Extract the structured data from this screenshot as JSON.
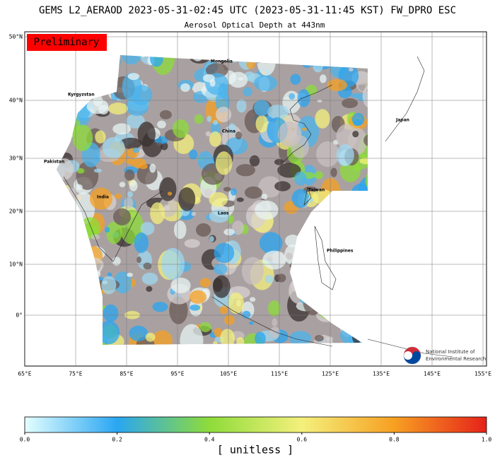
{
  "header": {
    "title": "GEMS L2_AERAOD 2023-05-31-02:45 UTC (2023-05-31-11:45 KST)  FW_DPRO ESC",
    "subtitle": "Aerosol Optical Depth at 443nm"
  },
  "badge": "Preliminary",
  "map": {
    "lat_labels": [
      "50°N",
      "40°N",
      "30°N",
      "20°N",
      "10°N",
      "0°"
    ],
    "lon_labels": [
      "65°E",
      "75°E",
      "85°E",
      "95°E",
      "105°E",
      "115°E",
      "125°E",
      "135°E",
      "145°E",
      "155°E"
    ],
    "places": [
      "Mongolia",
      "Kyrgyzstan",
      "China",
      "Japan",
      "Pakistan",
      "India",
      "Laos",
      "Taiwan",
      "Philippines"
    ]
  },
  "logo": {
    "line1": "National Institute of",
    "line2": "Environmental Research"
  },
  "colorbar": {
    "lim": [
      0,
      1
    ],
    "ticks": [
      {
        "value": 0,
        "label": "0.0"
      },
      0.2,
      0.4,
      0.6,
      0.8,
      {
        "value": 1,
        "label": "1.0"
      }
    ],
    "label": "[ unitless ]"
  }
}
